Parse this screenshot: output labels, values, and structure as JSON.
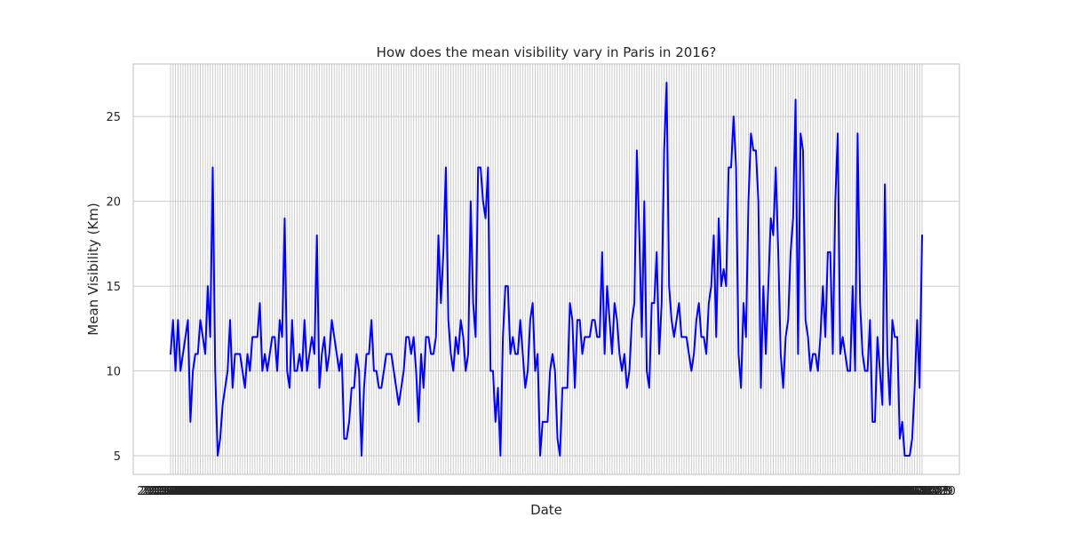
{
  "chart_data": {
    "type": "line",
    "title": "How does the mean visibility vary in Paris in 2016?",
    "xlabel": "Date",
    "ylabel": "Mean Visibility (Km)",
    "x_start": "2016-01-01",
    "x_end": "2016-12-31",
    "x_tick_labels": "illegible — one overlapping label per day of 2016",
    "y_ticks": [
      5,
      10,
      15,
      20,
      25
    ],
    "ylim": [
      3.9,
      28.1
    ],
    "grid": true,
    "legend": "none",
    "series": [
      {
        "color": "#0000ff",
        "values": [
          11,
          13,
          10,
          13,
          10,
          11,
          12,
          13,
          7,
          10,
          11,
          11,
          13,
          12,
          11,
          15,
          12,
          22,
          10,
          5,
          6,
          8,
          9,
          10,
          13,
          9,
          11,
          11,
          11,
          10,
          9,
          11,
          10,
          12,
          12,
          12,
          14,
          10,
          11,
          10,
          11,
          12,
          12,
          10,
          13,
          12,
          19,
          10,
          9,
          13,
          10,
          10,
          11,
          10,
          13,
          10,
          11,
          12,
          11,
          18,
          9,
          11,
          12,
          10,
          11,
          13,
          12,
          11,
          10,
          11,
          6,
          6,
          7,
          9,
          9,
          11,
          10,
          5,
          9,
          11,
          11,
          13,
          10,
          10,
          9,
          9,
          10,
          11,
          11,
          11,
          10,
          9,
          8,
          9,
          10,
          12,
          12,
          11,
          12,
          10,
          7,
          11,
          9,
          12,
          12,
          11,
          11,
          12,
          18,
          14,
          17,
          22,
          13,
          11,
          10,
          12,
          11,
          13,
          12,
          10,
          11,
          20,
          14,
          12,
          22,
          22,
          20,
          19,
          22,
          10,
          10,
          7,
          9,
          5,
          12,
          15,
          15,
          11,
          12,
          11,
          11,
          13,
          11,
          9,
          10,
          13,
          14,
          10,
          11,
          5,
          7,
          7,
          7,
          10,
          11,
          10,
          6,
          5,
          9,
          9,
          9,
          14,
          13,
          9,
          13,
          13,
          11,
          12,
          12,
          12,
          13,
          13,
          12,
          12,
          17,
          11,
          15,
          13,
          11,
          14,
          13,
          11,
          10,
          11,
          9,
          10,
          13,
          14,
          23,
          18,
          12,
          20,
          10,
          9,
          14,
          14,
          17,
          11,
          14,
          23,
          27,
          15,
          13,
          12,
          13,
          14,
          12,
          12,
          12,
          11,
          10,
          11,
          13,
          14,
          12,
          12,
          11,
          14,
          15,
          18,
          12,
          19,
          15,
          16,
          15,
          22,
          22,
          25,
          22,
          11,
          9,
          14,
          12,
          20,
          24,
          23,
          23,
          20,
          9,
          15,
          11,
          15,
          19,
          18,
          22,
          17,
          11,
          9,
          12,
          13,
          17,
          19,
          26,
          11,
          24,
          23,
          13,
          12,
          10,
          11,
          11,
          10,
          12,
          15,
          12,
          17,
          17,
          11,
          20,
          24,
          11,
          12,
          11,
          10,
          10,
          15,
          10,
          24,
          14,
          11,
          10,
          10,
          13,
          7,
          7,
          12,
          10,
          8,
          21,
          11,
          8,
          13,
          12,
          12,
          6,
          7,
          5,
          5,
          5,
          6,
          9,
          13,
          9,
          18
        ]
      }
    ]
  }
}
